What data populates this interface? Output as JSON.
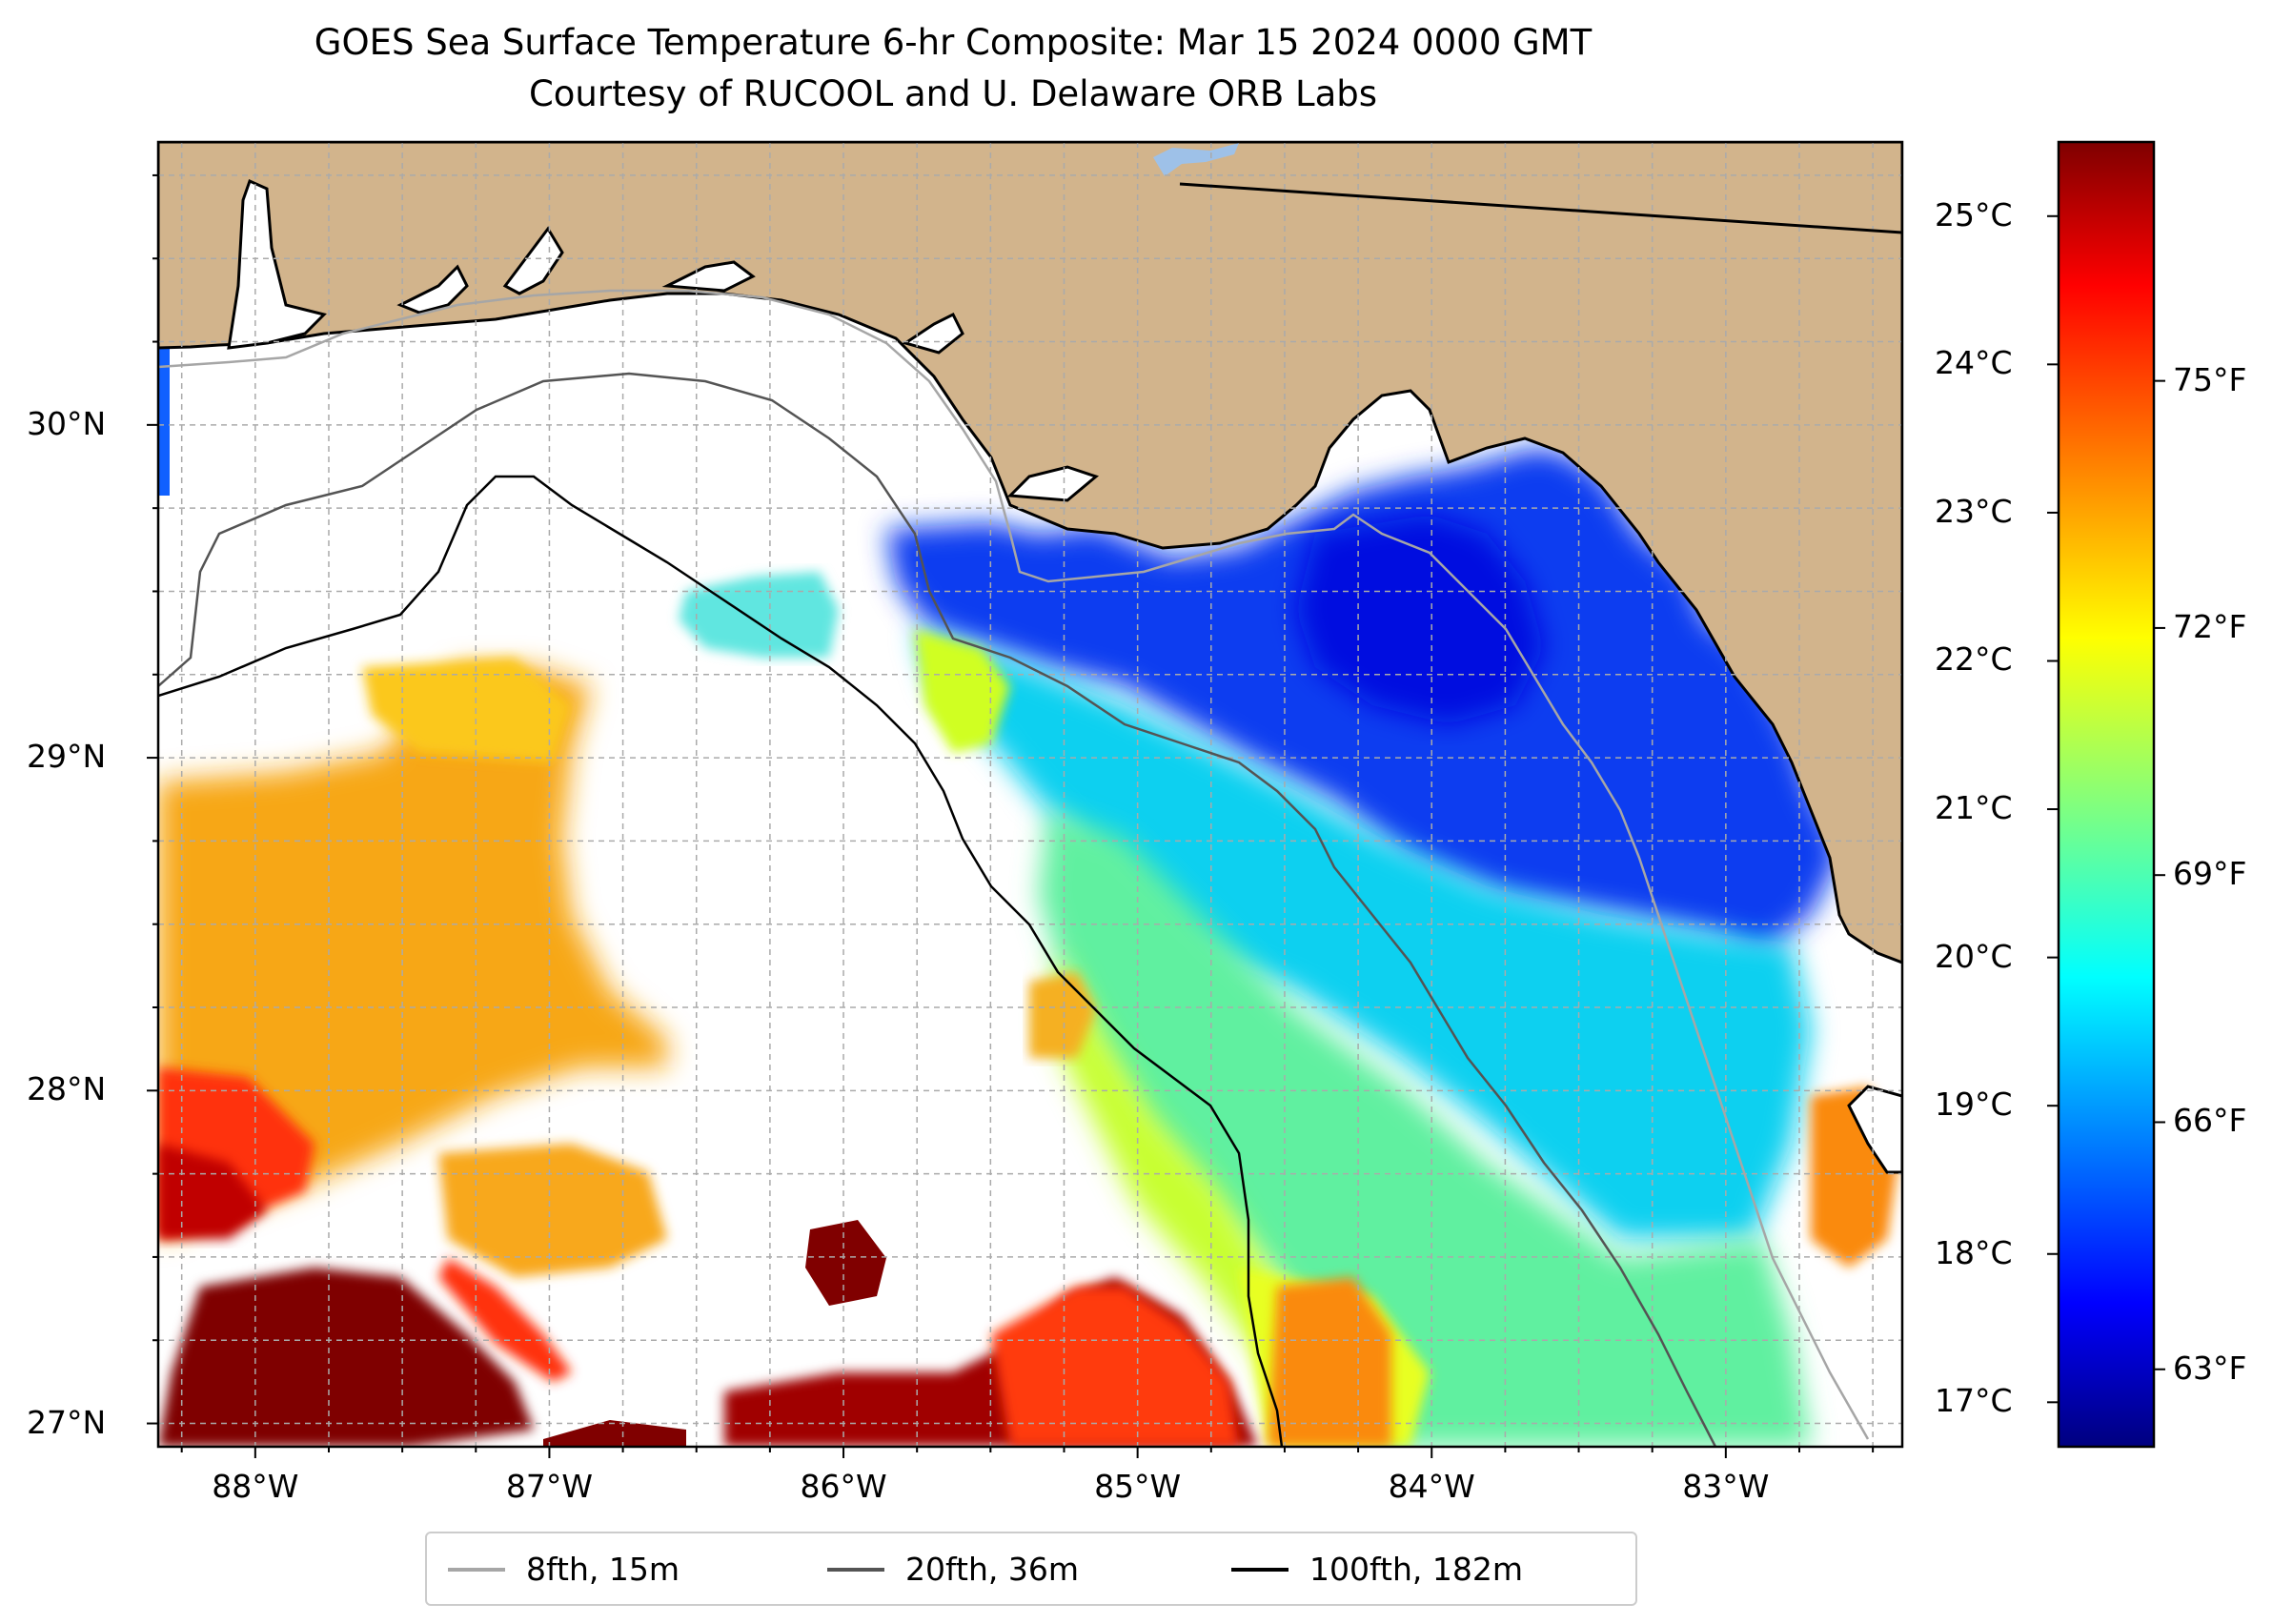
{
  "title": {
    "line1": "GOES Sea Surface Temperature 6-hr Composite: Mar 15 2024 0000 GMT",
    "line2": "Courtesy of RUCOOL and U. Delaware ORB Labs"
  },
  "map": {
    "lon_range": [
      -88.33,
      -82.4
    ],
    "lat_range": [
      26.93,
      30.85
    ],
    "lat_ticks": [
      {
        "value": 30,
        "label": "30°N"
      },
      {
        "value": 29,
        "label": "29°N"
      },
      {
        "value": 28,
        "label": "28°N"
      },
      {
        "value": 27,
        "label": "27°N"
      }
    ],
    "lon_ticks": [
      {
        "value": -88,
        "label": "88°W"
      },
      {
        "value": -87,
        "label": "87°W"
      },
      {
        "value": -86,
        "label": "86°W"
      },
      {
        "value": -85,
        "label": "85°W"
      },
      {
        "value": -84,
        "label": "84°W"
      },
      {
        "value": -83,
        "label": "83°W"
      }
    ],
    "gridlines": true,
    "land_color": "#d2b48c",
    "missing_data_color": "#ffffff"
  },
  "colorbar": {
    "colormap": "jet",
    "celsius_range": [
      16.7,
      25.5
    ],
    "celsius_ticks": [
      {
        "value": 25,
        "label": "25°C"
      },
      {
        "value": 24,
        "label": "24°C"
      },
      {
        "value": 23,
        "label": "23°C"
      },
      {
        "value": 22,
        "label": "22°C"
      },
      {
        "value": 21,
        "label": "21°C"
      },
      {
        "value": 20,
        "label": "20°C"
      },
      {
        "value": 19,
        "label": "19°C"
      },
      {
        "value": 18,
        "label": "18°C"
      },
      {
        "value": 17,
        "label": "17°C"
      }
    ],
    "fahrenheit_ticks": [
      {
        "value": 75,
        "label": "75°F"
      },
      {
        "value": 72,
        "label": "72°F"
      },
      {
        "value": 69,
        "label": "69°F"
      },
      {
        "value": 66,
        "label": "66°F"
      },
      {
        "value": 63,
        "label": "63°F"
      }
    ]
  },
  "legend": {
    "items": [
      {
        "label": "8fth, 15m",
        "color": "#a6a6a6"
      },
      {
        "label": "20fth, 36m",
        "color": "#545454"
      },
      {
        "label": "100fth, 182m",
        "color": "#000000"
      }
    ]
  }
}
